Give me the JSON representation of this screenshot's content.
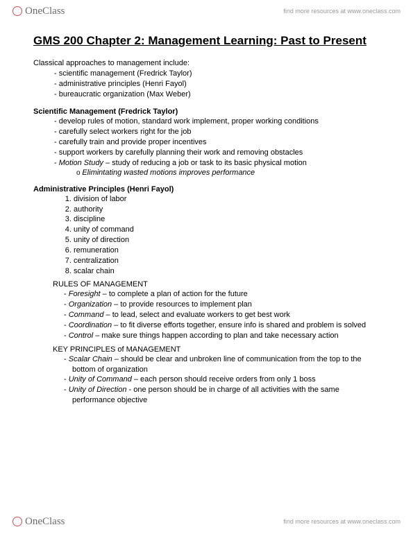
{
  "brand": {
    "name": "OneClass",
    "tagline": "find more resources at www.oneclass.com"
  },
  "title": "GMS 200 Chapter 2: Management Learning: Past to Present",
  "intro": "Classical approaches to management include:",
  "classical": [
    "scientific management (Fredrick Taylor)",
    "administrative principles (Henri Fayol)",
    "bureaucratic organization (Max Weber)"
  ],
  "sci_h": "Scientific Management  (Fredrick Taylor)",
  "sci": [
    "develop rules of motion, standard work implement, proper working conditions",
    "carefully select workers right for the job",
    "carefully train and provide proper incentives",
    "support workers by carefully planning their work and removing obstacles"
  ],
  "motion_term": "Motion Study",
  "motion_def": " – study of reducing a job or task to its basic physical motion",
  "motion_sub": "Elimintating wasted motions improves performance",
  "admin_h": "Administrative Principles (Henri Fayol)",
  "admin": [
    "division of labor",
    "authority",
    "discipline",
    "unity of command",
    "unity of direction",
    "remuneration",
    "centralization",
    "scalar chain"
  ],
  "rules_h": "RULES OF MANAGEMENT",
  "rules": [
    {
      "t": "Foresight",
      "d": " – to complete a plan of action for the future"
    },
    {
      "t": "Organization",
      "d": " – to provide resources to implement plan"
    },
    {
      "t": "Command",
      "d": " – to lead, select and evaluate workers to get best work"
    },
    {
      "t": "Coordination",
      "d": " – to fit diverse efforts together, ensure info is shared and problem is solved"
    },
    {
      "t": "Control",
      "d": " – make sure things happen according to plan and take necessary action"
    }
  ],
  "key_h": "KEY PRINCIPLES of MANAGEMENT",
  "keys": [
    {
      "t": "Scalar Chain",
      "d": " – should be clear and unbroken line of communication from the top to the bottom of organization"
    },
    {
      "t": "Unity of Command",
      "d": " – each person should receive orders from only 1 boss"
    },
    {
      "t": "Unity of Direction",
      "d": " -  one person should be in charge of all activities with the same performance objective"
    }
  ],
  "colors": {
    "text": "#000000",
    "bg": "#ffffff",
    "logo_ring": "#c94f4f",
    "logo_text": "#6b6b6b",
    "tagline": "#999999"
  }
}
